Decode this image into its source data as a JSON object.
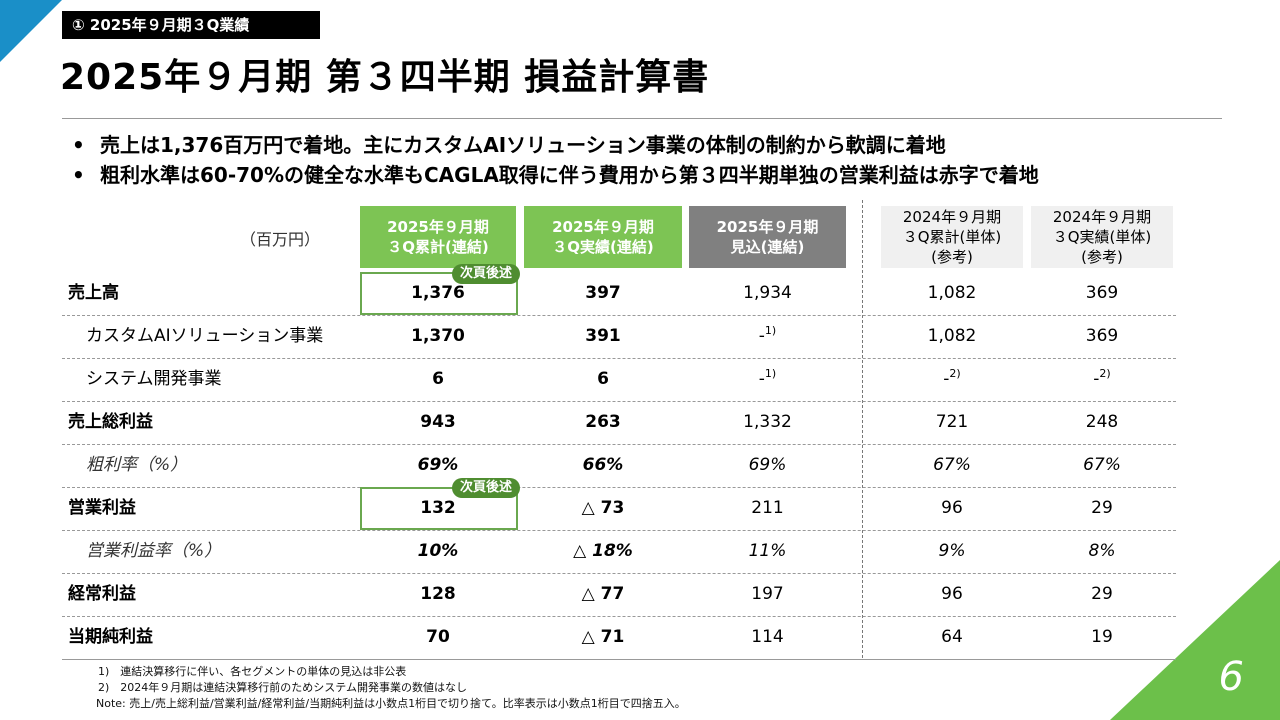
{
  "tag": "① 2025年９月期３Q業績",
  "title": "2025年９月期 第３四半期 損益計算書",
  "bullets": [
    "売上は1,376百万円で着地。主にカスタムAIソリューション事業の体制の制約から軟調に着地",
    "粗利水準は60-70%の健全な水準もCAGLA取得に伴う費用から第３四半期単独の営業利益は赤字で着地"
  ],
  "unit": "（百万円）",
  "headers": [
    "2025年９月期\n３Q累計(連結)",
    "2025年９月期\n３Q実績(連結)",
    "2025年９月期\n見込(連結)",
    "2024年９月期\n３Q累計(単体)\n(参考)",
    "2024年９月期\n３Q実績(単体)\n(参考)"
  ],
  "badge": "次頁後述",
  "rows": [
    {
      "label": "売上高",
      "c1": "1,376",
      "c2": "397",
      "c3": "1,934",
      "c4": "1,082",
      "c5": "369"
    },
    {
      "label": "カスタムAIソリューション事業",
      "c1": "1,370",
      "c2": "391",
      "c3": "-",
      "c3note": "1)",
      "c4": "1,082",
      "c5": "369"
    },
    {
      "label": "システム開発事業",
      "c1": "6",
      "c2": "6",
      "c3": "-",
      "c3note": "1)",
      "c4": "-",
      "c4note": "2)",
      "c5": "-",
      "c5note": "2)"
    },
    {
      "label": "売上総利益",
      "c1": "943",
      "c2": "263",
      "c3": "1,332",
      "c4": "721",
      "c5": "248"
    },
    {
      "label": "粗利率（%）",
      "c1": "69%",
      "c2": "66%",
      "c3": "69%",
      "c4": "67%",
      "c5": "67%"
    },
    {
      "label": "営業利益",
      "c1": "132",
      "c2": "△ 73",
      "c3": "211",
      "c4": "96",
      "c5": "29"
    },
    {
      "label": "営業利益率（%）",
      "c1": "10%",
      "c2": "△ 18%",
      "c3": "11%",
      "c4": "9%",
      "c5": "8%"
    },
    {
      "label": "経常利益",
      "c1": "128",
      "c2": "△ 77",
      "c3": "197",
      "c4": "96",
      "c5": "29"
    },
    {
      "label": "当期純利益",
      "c1": "70",
      "c2": "△ 71",
      "c3": "114",
      "c4": "64",
      "c5": "19"
    }
  ],
  "notes": [
    "1)　連結決算移行に伴い、各セグメントの単体の見込は非公表",
    "2)　2024年９月期は連結決算移行前のためシステム開発事業の数値はなし",
    "Note: 売上/売上総利益/営業利益/経常利益/当期純利益は小数点1桁目で切り捨て。比率表示は小数点1桁目で四捨五入。"
  ],
  "page_number": "6",
  "colors": {
    "accent_green": "#7dc454",
    "accent_blue": "#1a8fc8",
    "header_gray": "#808080"
  }
}
